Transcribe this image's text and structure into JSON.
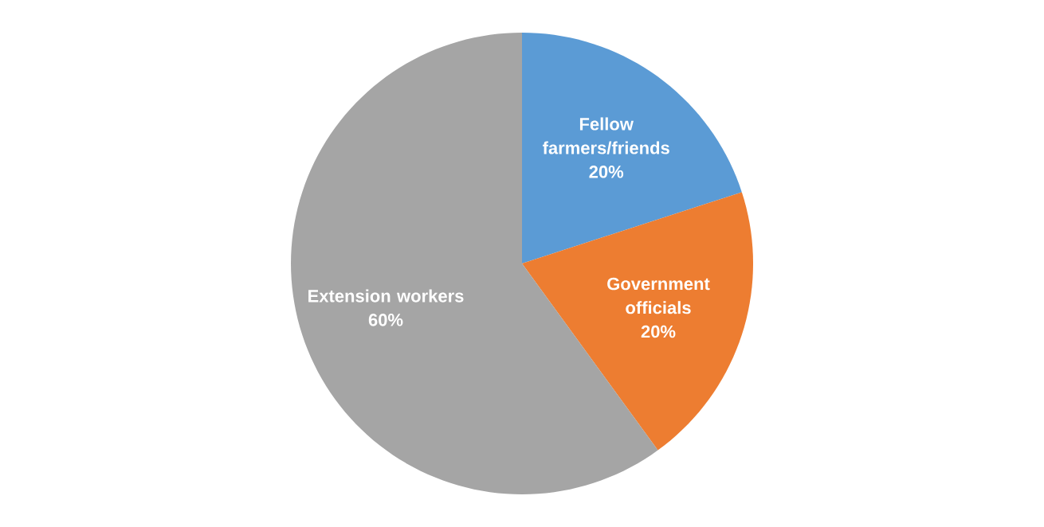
{
  "chart_data": {
    "type": "pie",
    "categories": [
      "Fellow farmers/friends",
      "Government officials",
      "Extension workers"
    ],
    "values": [
      20,
      20,
      60
    ],
    "value_labels": [
      "20%",
      "20%",
      "60%"
    ],
    "colors": [
      "#5b9bd5",
      "#ed7d31",
      "#a5a5a5"
    ]
  }
}
